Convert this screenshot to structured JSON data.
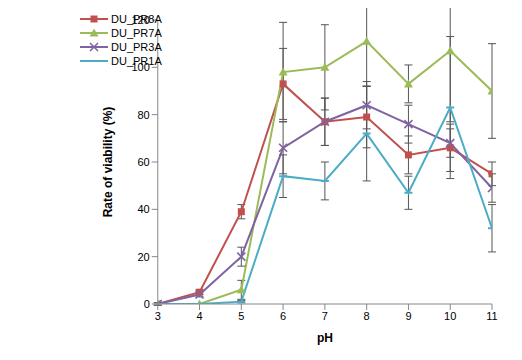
{
  "chart_data": {
    "type": "line",
    "x_label": "pH",
    "y_label": "Rate of viability (%)",
    "x": [
      3,
      4,
      5,
      6,
      7,
      8,
      9,
      10,
      11
    ],
    "xlim": [
      3,
      11
    ],
    "xticks": [
      3,
      4,
      5,
      6,
      7,
      8,
      9,
      10,
      11
    ],
    "ylim": [
      0,
      120
    ],
    "yticks": [
      0,
      20,
      40,
      60,
      80,
      100,
      120
    ],
    "grid": false,
    "legend": "upper left",
    "series": [
      {
        "name": "DU_PR8A",
        "color": "#c0504d",
        "marker": "square",
        "values": [
          0,
          5,
          39,
          93,
          77,
          79,
          63,
          66,
          55
        ],
        "errors": [
          0.5,
          1,
          3,
          15,
          10,
          13,
          8,
          10,
          5
        ]
      },
      {
        "name": "DU_PR7A",
        "color": "#9bbb59",
        "marker": "triangle",
        "values": [
          0,
          0,
          6,
          98,
          100,
          111,
          93,
          107,
          90
        ],
        "errors": [
          0,
          0,
          4,
          21,
          18,
          19,
          8,
          30,
          20
        ]
      },
      {
        "name": "DU_PR3A",
        "color": "#8064a2",
        "marker": "cross",
        "values": [
          0,
          4,
          20,
          66,
          77,
          84,
          76,
          68,
          49
        ],
        "errors": [
          0.5,
          1,
          4,
          11,
          10,
          10,
          8,
          6,
          6
        ]
      },
      {
        "name": "DU_PR1A",
        "color": "#4bacc6",
        "marker": "dash",
        "values": [
          0,
          0,
          1,
          54,
          52,
          72,
          47,
          83,
          32
        ],
        "errors": [
          0,
          0,
          0.5,
          9,
          8,
          20,
          7,
          30,
          10
        ]
      }
    ]
  }
}
